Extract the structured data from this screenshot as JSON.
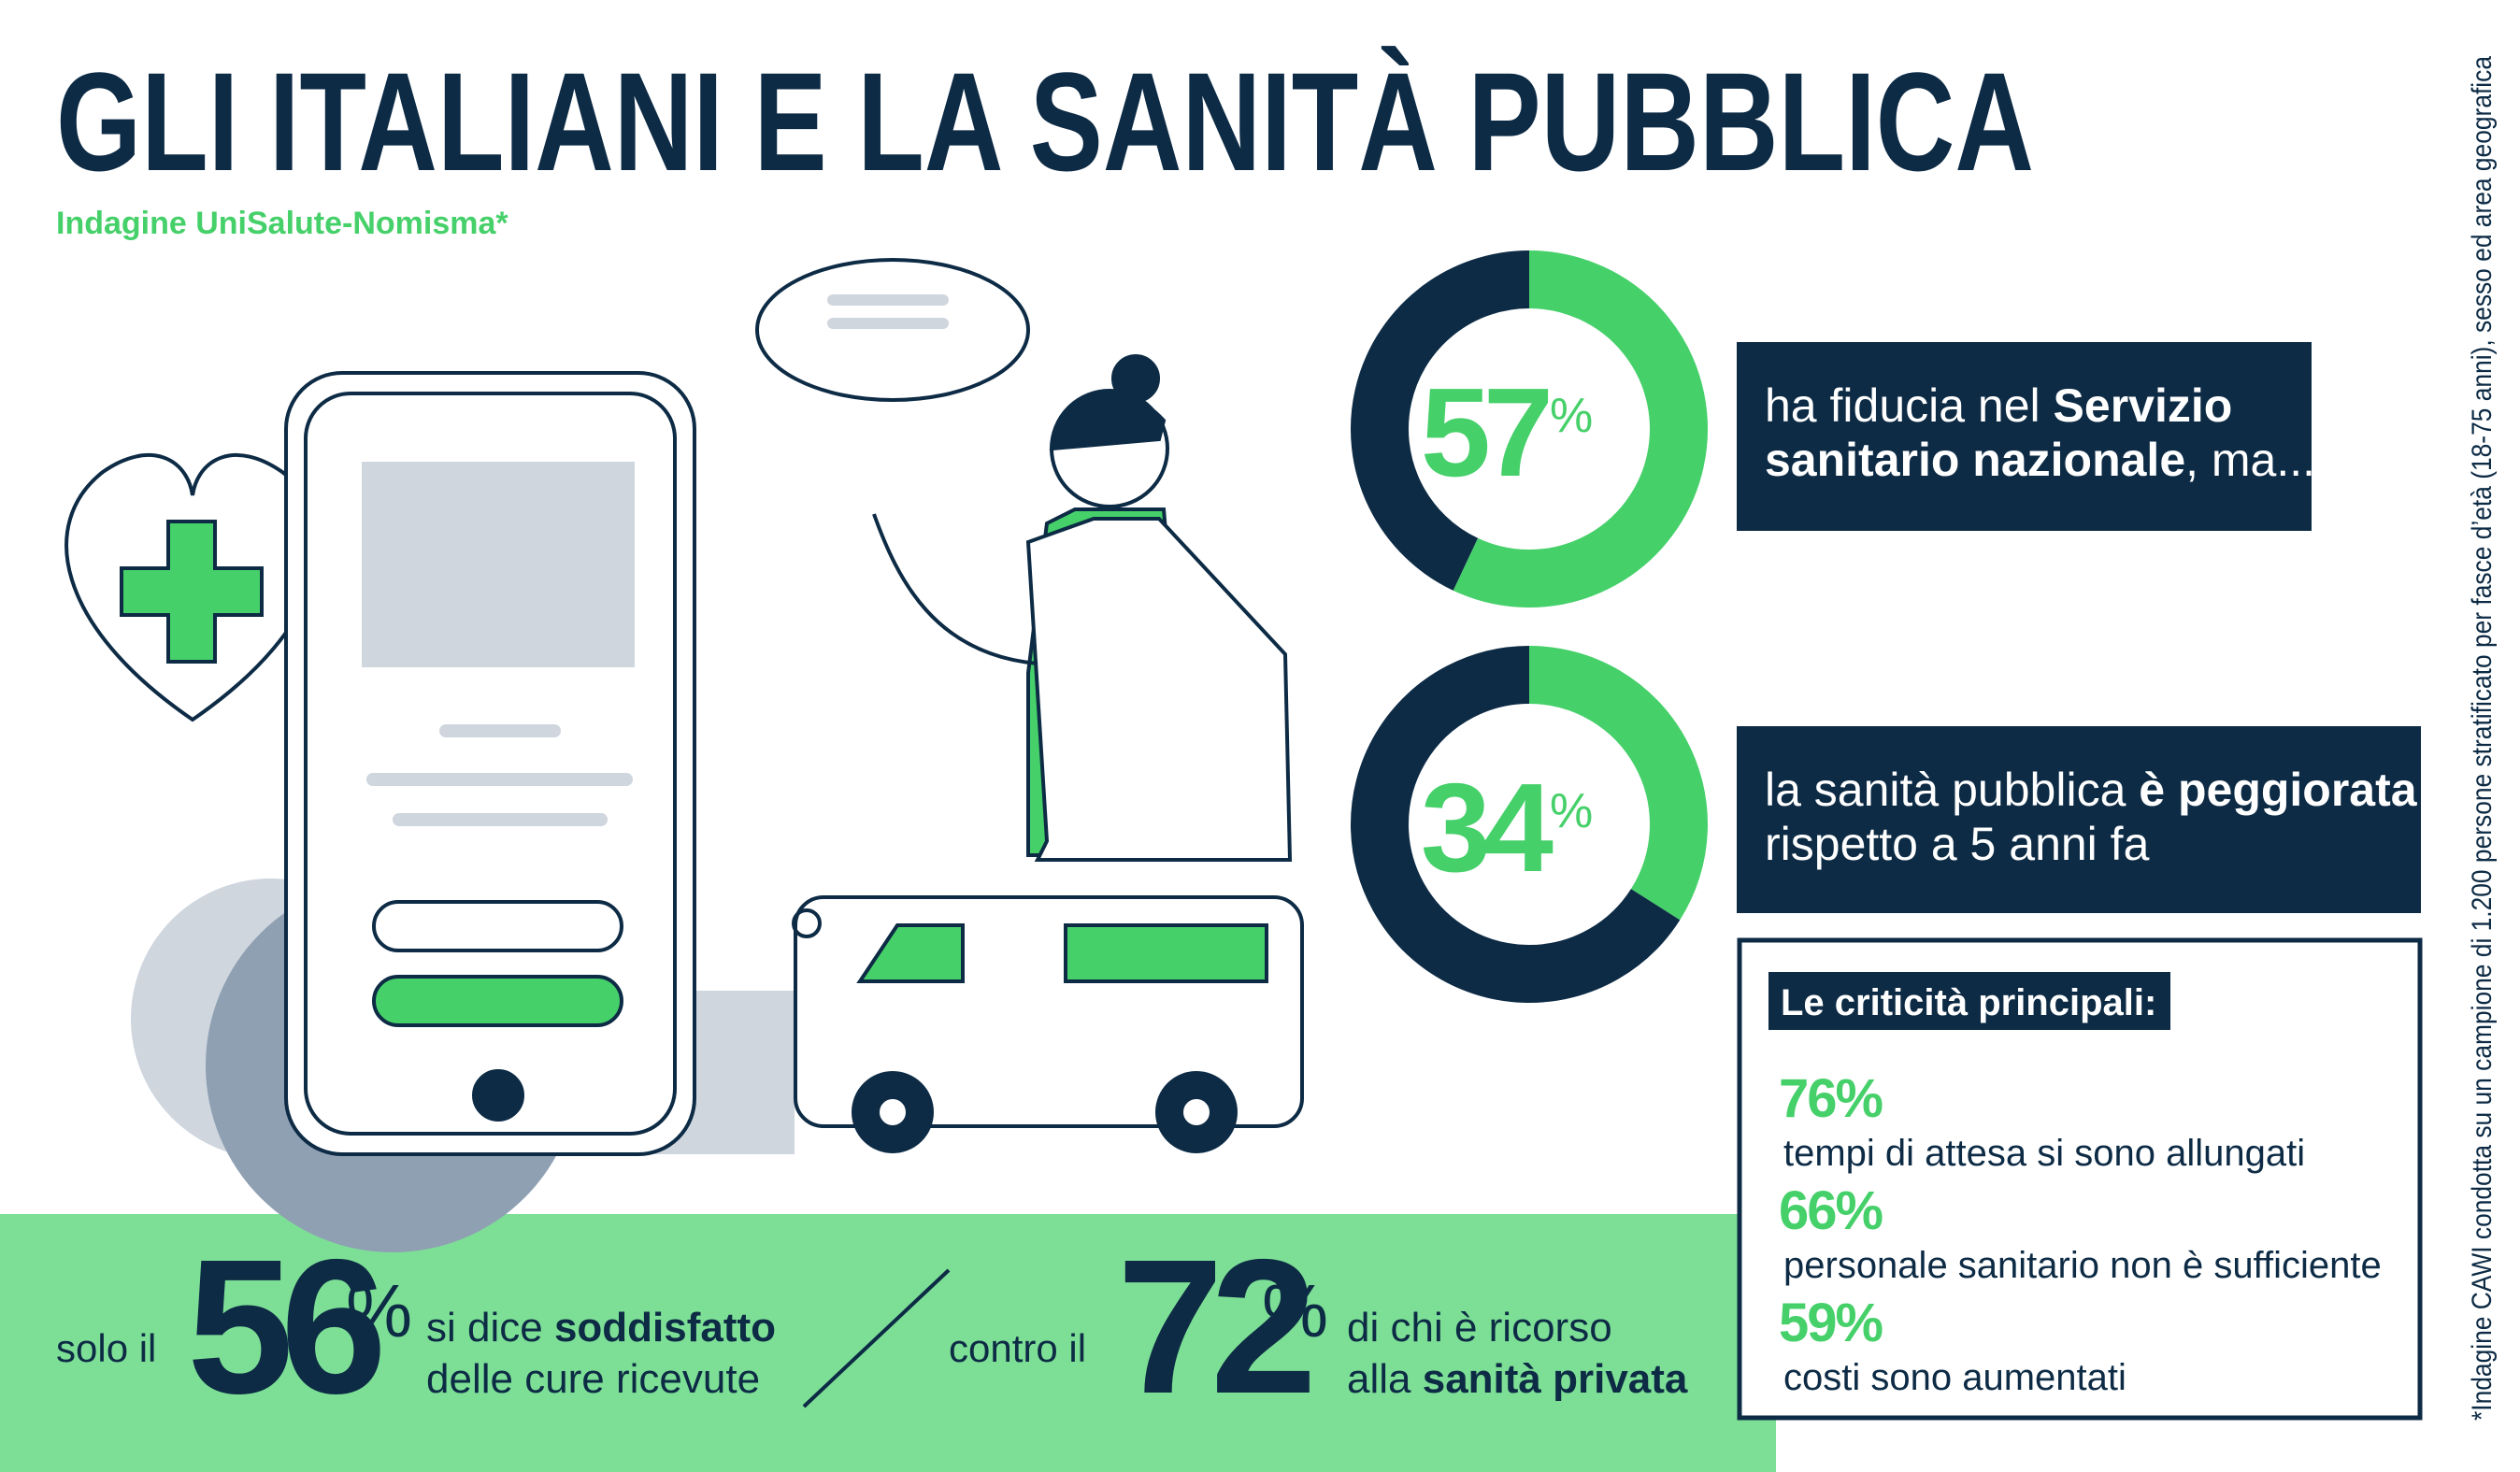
{
  "header": {
    "title": "GLI ITALIANI E LA SANITÀ PUBBLICA",
    "subtitle": "Indagine UniSalute-Nomisma*"
  },
  "chart_data": [
    {
      "type": "donut",
      "values": [
        57,
        43
      ],
      "colors": [
        "#46d06a",
        "#0d2b45"
      ],
      "unit": "%",
      "lines": [
        [
          {
            "text": "ha fiducia nel "
          },
          {
            "text": "Servizio",
            "bold": true
          }
        ],
        [
          {
            "text": "sanitario nazionale",
            "bold": true
          },
          {
            "text": ", ma..."
          }
        ]
      ]
    },
    {
      "type": "donut",
      "values": [
        34,
        66
      ],
      "colors": [
        "#46d06a",
        "#0d2b45"
      ],
      "unit": "%",
      "lines": [
        [
          {
            "text": "la sanità pubblica "
          },
          {
            "text": "è peggiorata",
            "bold": true
          }
        ],
        [
          {
            "text": "rispetto a 5 anni fa"
          }
        ]
      ]
    }
  ],
  "criticita": {
    "title": "Le criticità principali:",
    "items": [
      {
        "value": "76%",
        "text": "tempi di attesa si sono allungati"
      },
      {
        "value": "66%",
        "text": "personale sanitario non è sufficiente"
      },
      {
        "value": "59%",
        "text": "costi sono aumentati"
      }
    ]
  },
  "bottom": [
    {
      "prefix": "solo il",
      "number": 56,
      "unit": "%",
      "lines": [
        [
          {
            "text": "si dice "
          },
          {
            "text": "soddisfatto",
            "bold": true
          }
        ],
        [
          {
            "text": "delle cure ricevute"
          }
        ]
      ]
    },
    {
      "prefix": "contro il",
      "number": 72,
      "unit": "%",
      "lines": [
        [
          {
            "text": "di chi è ricorso"
          }
        ],
        [
          {
            "text": "alla "
          },
          {
            "text": "sanità privata",
            "bold": true
          }
        ]
      ]
    }
  ],
  "footnote": "*Indagine CAWI condotta su un campione di 1.200 persone stratificato per fasce d’età (18-75 anni), sesso ed area geografica"
}
